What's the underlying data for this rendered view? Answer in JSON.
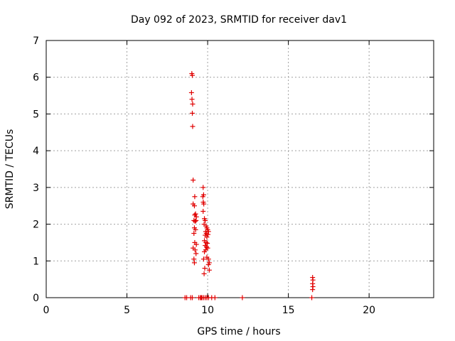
{
  "chart_data": {
    "type": "scatter",
    "title": "Day 092 of 2023, SRMTID for receiver dav1",
    "xlabel": "GPS time / hours",
    "ylabel": "SRMTID / TECUs",
    "xlim": [
      0,
      24
    ],
    "ylim": [
      0,
      7
    ],
    "xticks": [
      0,
      5,
      10,
      15,
      20
    ],
    "yticks": [
      0,
      1,
      2,
      3,
      4,
      5,
      6,
      7
    ],
    "grid": true,
    "marker": "plus",
    "color": "#e00000",
    "points": [
      {
        "x": 9.02,
        "y": 6.1
      },
      {
        "x": 9.05,
        "y": 6.05
      },
      {
        "x": 9.0,
        "y": 5.58
      },
      {
        "x": 9.03,
        "y": 5.4
      },
      {
        "x": 9.07,
        "y": 5.27
      },
      {
        "x": 9.05,
        "y": 5.02
      },
      {
        "x": 9.07,
        "y": 4.66
      },
      {
        "x": 9.1,
        "y": 3.2
      },
      {
        "x": 9.2,
        "y": 2.75
      },
      {
        "x": 9.1,
        "y": 2.55
      },
      {
        "x": 9.18,
        "y": 2.5
      },
      {
        "x": 9.25,
        "y": 2.28
      },
      {
        "x": 9.2,
        "y": 2.25
      },
      {
        "x": 9.3,
        "y": 2.2
      },
      {
        "x": 9.15,
        "y": 2.1
      },
      {
        "x": 9.22,
        "y": 2.08
      },
      {
        "x": 9.28,
        "y": 2.1
      },
      {
        "x": 9.18,
        "y": 1.9
      },
      {
        "x": 9.25,
        "y": 1.85
      },
      {
        "x": 9.15,
        "y": 1.75
      },
      {
        "x": 9.2,
        "y": 1.5
      },
      {
        "x": 9.3,
        "y": 1.45
      },
      {
        "x": 9.1,
        "y": 1.35
      },
      {
        "x": 9.22,
        "y": 1.3
      },
      {
        "x": 9.28,
        "y": 1.2
      },
      {
        "x": 9.15,
        "y": 1.05
      },
      {
        "x": 9.18,
        "y": 0.95
      },
      {
        "x": 9.72,
        "y": 3.0
      },
      {
        "x": 9.75,
        "y": 2.8
      },
      {
        "x": 9.7,
        "y": 2.75
      },
      {
        "x": 9.73,
        "y": 2.6
      },
      {
        "x": 9.76,
        "y": 2.55
      },
      {
        "x": 9.72,
        "y": 2.35
      },
      {
        "x": 9.8,
        "y": 2.15
      },
      {
        "x": 9.85,
        "y": 2.1
      },
      {
        "x": 9.78,
        "y": 2.0
      },
      {
        "x": 9.9,
        "y": 1.95
      },
      {
        "x": 9.95,
        "y": 1.9
      },
      {
        "x": 10.0,
        "y": 1.85
      },
      {
        "x": 10.05,
        "y": 1.8
      },
      {
        "x": 9.88,
        "y": 1.8
      },
      {
        "x": 9.92,
        "y": 1.75
      },
      {
        "x": 10.02,
        "y": 1.72
      },
      {
        "x": 9.85,
        "y": 1.7
      },
      {
        "x": 9.95,
        "y": 1.65
      },
      {
        "x": 9.8,
        "y": 1.55
      },
      {
        "x": 9.9,
        "y": 1.5
      },
      {
        "x": 9.98,
        "y": 1.48
      },
      {
        "x": 9.85,
        "y": 1.42
      },
      {
        "x": 9.93,
        "y": 1.38
      },
      {
        "x": 10.0,
        "y": 1.35
      },
      {
        "x": 9.88,
        "y": 1.3
      },
      {
        "x": 9.8,
        "y": 1.25
      },
      {
        "x": 9.95,
        "y": 1.1
      },
      {
        "x": 10.05,
        "y": 1.05
      },
      {
        "x": 9.75,
        "y": 1.05
      },
      {
        "x": 10.1,
        "y": 0.95
      },
      {
        "x": 10.05,
        "y": 0.9
      },
      {
        "x": 9.82,
        "y": 0.8
      },
      {
        "x": 10.1,
        "y": 0.75
      },
      {
        "x": 9.78,
        "y": 0.65
      },
      {
        "x": 16.5,
        "y": 0.55
      },
      {
        "x": 16.52,
        "y": 0.48
      },
      {
        "x": 16.5,
        "y": 0.38
      },
      {
        "x": 16.52,
        "y": 0.3
      },
      {
        "x": 16.5,
        "y": 0.22
      },
      {
        "x": 8.6,
        "y": 0
      },
      {
        "x": 8.7,
        "y": 0
      },
      {
        "x": 8.95,
        "y": 0
      },
      {
        "x": 9.05,
        "y": 0
      },
      {
        "x": 9.45,
        "y": 0
      },
      {
        "x": 9.55,
        "y": 0
      },
      {
        "x": 9.6,
        "y": 0
      },
      {
        "x": 9.65,
        "y": 0
      },
      {
        "x": 9.75,
        "y": 0
      },
      {
        "x": 9.85,
        "y": 0
      },
      {
        "x": 9.95,
        "y": 0
      },
      {
        "x": 10.05,
        "y": 0
      },
      {
        "x": 10.25,
        "y": 0
      },
      {
        "x": 10.45,
        "y": 0
      },
      {
        "x": 12.15,
        "y": 0
      },
      {
        "x": 16.45,
        "y": 0
      }
    ]
  }
}
